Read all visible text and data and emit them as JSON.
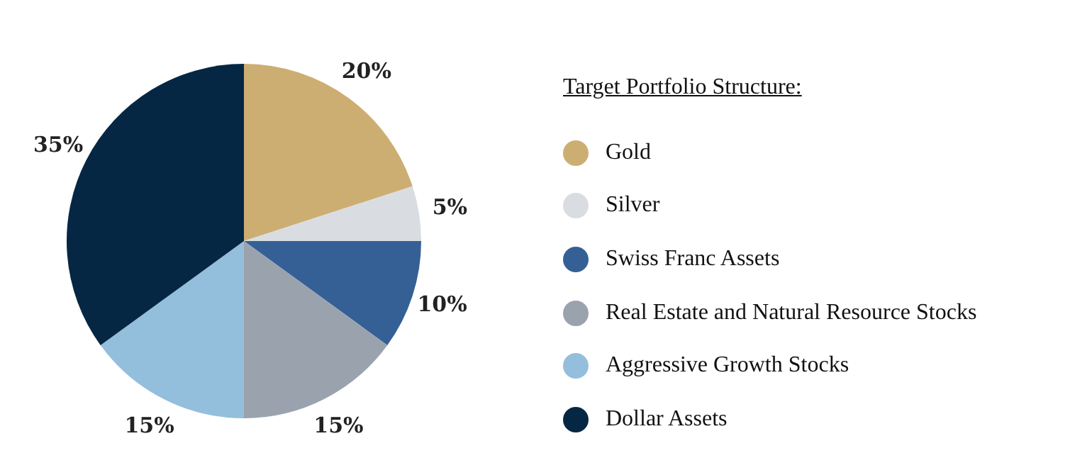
{
  "chart_data": {
    "type": "pie",
    "legend_title": "Target Portfolio Structure:",
    "legend": "right",
    "categories": [
      "Gold",
      "Silver",
      "Swiss Franc Assets",
      "Real Estate and Natural Resource Stocks",
      "Aggressive Growth Stocks",
      "Dollar Assets"
    ],
    "values": [
      20,
      5,
      10,
      15,
      15,
      35
    ],
    "value_labels": [
      "20%",
      "5%",
      "10%",
      "15%",
      "15%",
      "35%"
    ],
    "colors": [
      "#cdae72",
      "#d9dde2",
      "#356096",
      "#9aa3ad",
      "#93bfdc",
      "#062743"
    ]
  }
}
